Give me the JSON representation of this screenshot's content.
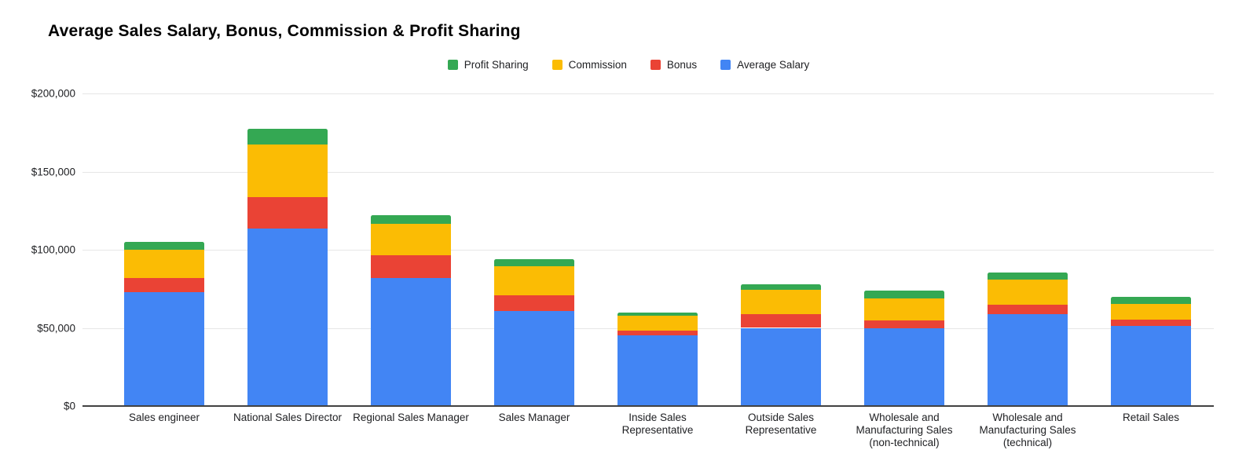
{
  "title": "Average Sales Salary, Bonus, Commission & Profit Sharing",
  "colors": {
    "average_salary": "#4285F4",
    "bonus": "#EA4335",
    "commission": "#FBBC04",
    "profit_sharing": "#34A853",
    "gridline": "#e6e6e6",
    "axis_line": "#424242",
    "background": "#ffffff",
    "text": "#202124"
  },
  "chart_data": {
    "type": "bar",
    "stacked": true,
    "title": "Average Sales Salary, Bonus, Commission & Profit Sharing",
    "xlabel": "",
    "ylabel": "",
    "grid": true,
    "legend_position": "top",
    "legend_order": [
      "Profit Sharing",
      "Commission",
      "Bonus",
      "Average Salary"
    ],
    "categories": [
      "Sales engineer",
      "National Sales Director",
      "Regional Sales Manager",
      "Sales Manager",
      "Inside Sales Representative",
      "Outside Sales Representative",
      "Wholesale and Manufacturing Sales (non-technical)",
      "Wholesale and Manufacturing Sales (technical)",
      "Retail Sales"
    ],
    "series": [
      {
        "name": "Average Salary",
        "color": "#4285F4",
        "values": [
          73000,
          113500,
          82000,
          61000,
          45000,
          50000,
          49500,
          59000,
          51500
        ]
      },
      {
        "name": "Bonus",
        "color": "#EA4335",
        "values": [
          9000,
          20000,
          14500,
          10000,
          3000,
          9000,
          5500,
          6000,
          4000
        ]
      },
      {
        "name": "Commission",
        "color": "#FBBC04",
        "values": [
          18000,
          34000,
          20000,
          18500,
          10000,
          15500,
          14000,
          16000,
          10000
        ]
      },
      {
        "name": "Profit Sharing",
        "color": "#34A853",
        "values": [
          5000,
          10000,
          5500,
          4500,
          2000,
          3500,
          5000,
          4500,
          4500
        ]
      }
    ],
    "stack_totals": [
      105000,
      177500,
      122000,
      94000,
      60000,
      78000,
      74000,
      85500,
      70000
    ],
    "y_axis": {
      "tick_labels": [
        "$0",
        "$50,000",
        "$100,000",
        "$150,000",
        "$200,000"
      ],
      "tick_values": [
        0,
        50000,
        100000,
        150000,
        200000
      ],
      "min": 0,
      "max": 200000
    }
  }
}
